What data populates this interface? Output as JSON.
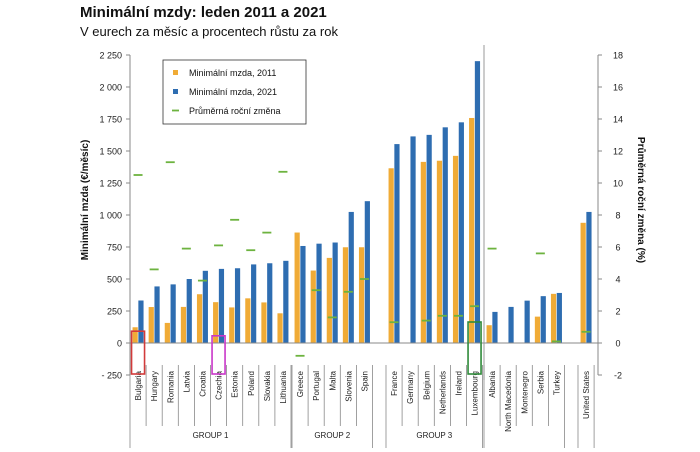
{
  "title": "Minimální mzdy: leden 2011 a 2021",
  "subtitle": "V eurech za měsíc a procentech růstu za rok",
  "colors": {
    "bar2011": "#f0ab36",
    "bar2021": "#2e6db1",
    "avg": "#6db33f",
    "highlight_bulgaria": "#d23b3b",
    "highlight_czechia": "#c937c9",
    "highlight_luxembourg": "#2f8a3a"
  },
  "chart_data": {
    "type": "bar",
    "ylabel_left": "Minimální mzda (€/měsíc)",
    "ylabel_right": "Průměrná roční změna (%)",
    "ylim_left": [
      -250,
      2250
    ],
    "ylim_right": [
      -2,
      18
    ],
    "yticks_left": [
      "- 250",
      "0",
      "250",
      "500",
      "750",
      "1 000",
      "1 250",
      "1 500",
      "1 750",
      "2 000",
      "2 250"
    ],
    "yticks_right": [
      "-2",
      "0",
      "2",
      "4",
      "6",
      "8",
      "10",
      "12",
      "14",
      "16",
      "18"
    ],
    "legend": {
      "position": "top-left",
      "items": [
        "Minimální mzda, 2011",
        "Minimální mzda, 2021",
        "Průměrná roční změna"
      ]
    },
    "groups": [
      {
        "label": "GROUP 1",
        "countries": [
          "Bulgaria",
          "Hungary",
          "Romania",
          "Latvia",
          "Croatia",
          "Czechia",
          "Estonia",
          "Poland",
          "Slovakia",
          "Lithuania"
        ]
      },
      {
        "label": "GROUP 2",
        "countries": [
          "Greece",
          "Portugal",
          "Malta",
          "Slovenia",
          "Spain"
        ]
      },
      {
        "label": "GROUP 3",
        "countries": [
          "France",
          "Germany",
          "Belgium",
          "Netherlands",
          "Ireland",
          "Luxembourg"
        ]
      },
      {
        "label": "",
        "countries": [
          "Albania",
          "North Macedonia",
          "Montenegro",
          "Serbia",
          "Turkey"
        ]
      },
      {
        "label": "",
        "countries": [
          "United States"
        ]
      }
    ],
    "series": [
      {
        "name": "Minimální mzda, 2011",
        "values": [
          123,
          281,
          157,
          282,
          381,
          319,
          278,
          349,
          317,
          232,
          863,
          566,
          665,
          748,
          748,
          1365,
          null,
          1415,
          1424,
          1462,
          1758,
          139,
          null,
          null,
          206,
          384,
          939
        ]
      },
      {
        "name": "Minimální mzda, 2021",
        "values": [
          332,
          442,
          458,
          500,
          564,
          579,
          584,
          614,
          623,
          642,
          758,
          776,
          785,
          1024,
          1108,
          1554,
          1614,
          1626,
          1685,
          1724,
          2202,
          243,
          282,
          331,
          366,
          391,
          1024
        ]
      },
      {
        "name": "Průměrná roční změna",
        "values": [
          10.5,
          4.6,
          11.3,
          5.9,
          3.9,
          6.1,
          7.7,
          5.8,
          6.9,
          10.7,
          -0.8,
          3.3,
          1.6,
          3.2,
          4.0,
          1.3,
          null,
          1.4,
          1.7,
          1.7,
          2.3,
          5.9,
          null,
          null,
          5.6,
          0.1,
          0.7
        ]
      }
    ],
    "highlighted": [
      "Bulgaria",
      "Czechia",
      "Luxembourg"
    ]
  }
}
